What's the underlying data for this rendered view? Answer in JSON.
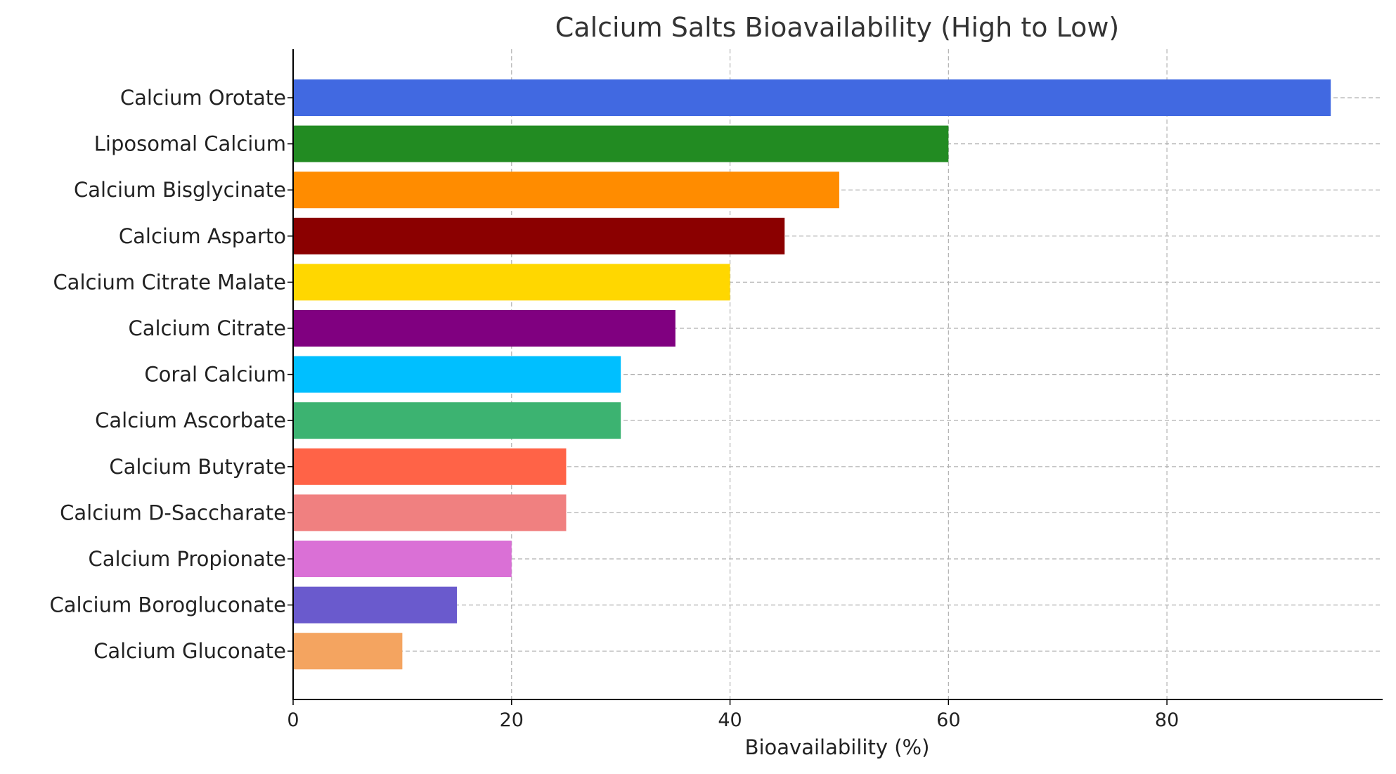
{
  "chart_data": {
    "type": "bar",
    "orientation": "horizontal",
    "title": "Calcium Salts Bioavailability (High to Low)",
    "xlabel": "Bioavailability (%)",
    "ylabel": "",
    "xlim": [
      0,
      99.75
    ],
    "xticks": [
      0,
      20,
      40,
      60,
      80
    ],
    "grid": true,
    "categories": [
      "Calcium Orotate",
      "Liposomal Calcium",
      "Calcium Bisglycinate",
      "Calcium Asparto",
      "Calcium Citrate Malate",
      "Calcium Citrate",
      "Coral Calcium",
      "Calcium Ascorbate",
      "Calcium Butyrate",
      "Calcium D-Saccharate",
      "Calcium Propionate",
      "Calcium Borogluconate",
      "Calcium Gluconate"
    ],
    "values": [
      95,
      60,
      50,
      45,
      40,
      35,
      30,
      30,
      25,
      25,
      20,
      15,
      10
    ],
    "colors": [
      "#4169e1",
      "#228b22",
      "#ff8c00",
      "#8b0000",
      "#ffd700",
      "#800080",
      "#00bfff",
      "#3cb371",
      "#ff6347",
      "#f08080",
      "#da70d6",
      "#6a5acd",
      "#f4a460"
    ]
  }
}
